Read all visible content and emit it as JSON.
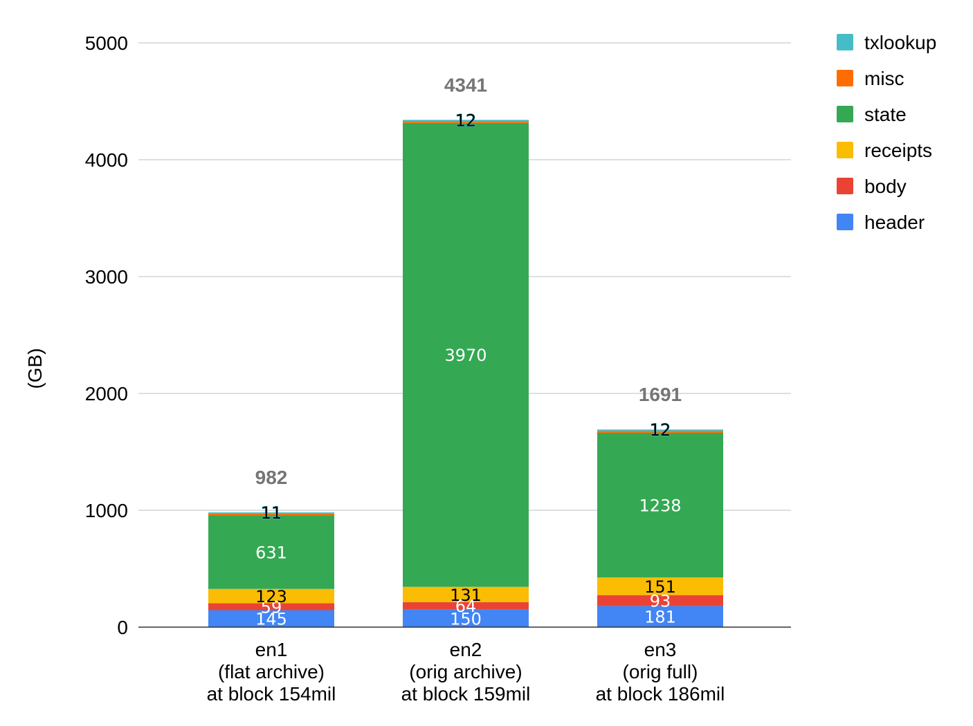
{
  "chart_data": {
    "type": "bar",
    "stacked": true,
    "title": "",
    "xlabel": "",
    "ylabel": "(GB)",
    "ylim": [
      0,
      5000
    ],
    "yticks": [
      "0",
      "1000",
      "2000",
      "3000",
      "4000",
      "5000"
    ],
    "ytick_values": [
      0,
      1000,
      2000,
      3000,
      4000,
      5000
    ],
    "grid": true,
    "legend_position": "top-right",
    "categories": [
      [
        "en1",
        "(flat archive)",
        "at block 154mil"
      ],
      [
        "en2",
        "(orig archive)",
        "at block 159mil"
      ],
      [
        "en3",
        "(orig full)",
        "at block 186mil"
      ]
    ],
    "series": [
      {
        "name": "header",
        "color": "#4285F4",
        "values": [
          145,
          150,
          181
        ],
        "labels": [
          "145",
          "150",
          "181"
        ],
        "label_color": "#ffffff"
      },
      {
        "name": "body",
        "color": "#EA4335",
        "values": [
          59,
          64,
          93
        ],
        "labels": [
          "59",
          "64",
          "93"
        ],
        "label_color": "#ffffff"
      },
      {
        "name": "receipts",
        "color": "#FBBC04",
        "values": [
          123,
          131,
          151
        ],
        "labels": [
          "123",
          "131",
          "151"
        ],
        "label_color": "#000000"
      },
      {
        "name": "state",
        "color": "#34A853",
        "values": [
          631,
          3970,
          1238
        ],
        "labels": [
          "631",
          "3970",
          "1238"
        ],
        "label_color": "#ffffff"
      },
      {
        "name": "misc",
        "color": "#FF6D01",
        "values": [
          13,
          14,
          16
        ],
        "labels": [
          "",
          "",
          ""
        ],
        "label_color": "#000000"
      },
      {
        "name": "txlookup",
        "color": "#46BDC6",
        "values": [
          11,
          12,
          12
        ],
        "labels": [
          "11",
          "12",
          "12"
        ],
        "label_color": "#000000"
      }
    ],
    "totals": [
      "982",
      "4341",
      "1691"
    ],
    "total_values": [
      982,
      4341,
      1691
    ],
    "legend_order": [
      "txlookup",
      "misc",
      "state",
      "receipts",
      "body",
      "header"
    ]
  }
}
